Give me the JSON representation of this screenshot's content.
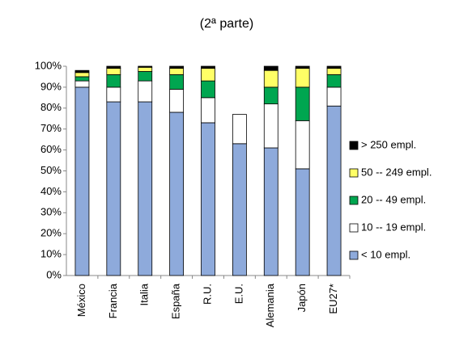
{
  "chart_data": {
    "type": "stacked_bar",
    "title": "(2ª parte)",
    "categories": [
      "México",
      "Francia",
      "Italia",
      "España",
      "R.U.",
      "E.U.",
      "Alemania",
      "Japón",
      "EU27*"
    ],
    "series": [
      {
        "name": "< 10 empl.",
        "color": "#8eaadb",
        "values": [
          90,
          83,
          83,
          78,
          73,
          63,
          61,
          51,
          81
        ]
      },
      {
        "name": "10 -- 19 empl.",
        "color": "#ffffff",
        "values": [
          3,
          7,
          10,
          11,
          12,
          14,
          21,
          23,
          9
        ]
      },
      {
        "name": "20 -- 49 empl.",
        "color": "#00a650",
        "values": [
          2,
          6,
          4.5,
          7,
          8,
          null,
          8,
          16,
          6
        ]
      },
      {
        "name": "50 -- 249 empl.",
        "color": "#ffff66",
        "values": [
          2,
          3,
          2,
          3,
          6,
          null,
          8,
          9,
          3
        ]
      },
      {
        "name": "> 250 empl.",
        "color": "#000000",
        "values": [
          1,
          1,
          0.5,
          1,
          1,
          null,
          2,
          1,
          1
        ]
      }
    ],
    "ylim": [
      0,
      100
    ],
    "yticks": [
      {
        "value": 0,
        "label": "0%"
      },
      {
        "value": 10,
        "label": "10%"
      },
      {
        "value": 20,
        "label": "20%"
      },
      {
        "value": 30,
        "label": "30%"
      },
      {
        "value": 40,
        "label": "40%"
      },
      {
        "value": 50,
        "label": "50%"
      },
      {
        "value": 60,
        "label": "60%"
      },
      {
        "value": 70,
        "label": "70%"
      },
      {
        "value": 80,
        "label": "80%"
      },
      {
        "value": 90,
        "label": "90%"
      },
      {
        "value": 100,
        "label": "100%"
      }
    ],
    "legend": "right"
  }
}
